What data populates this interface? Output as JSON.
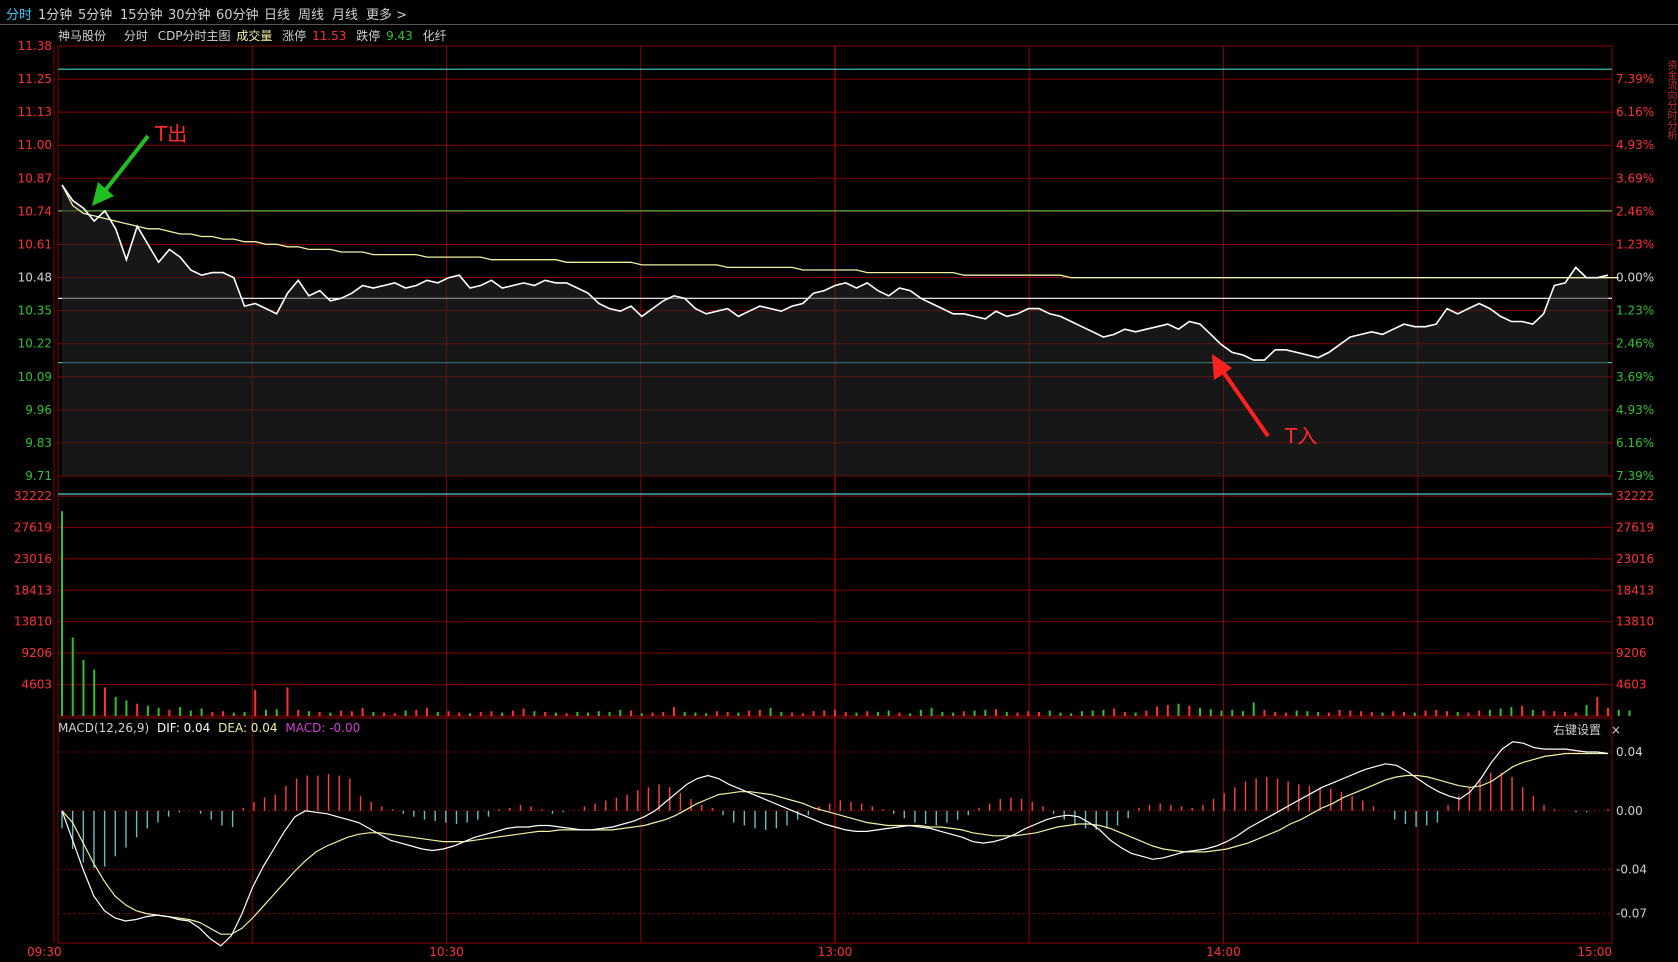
{
  "tabs": [
    {
      "label": "分时",
      "active": true
    },
    {
      "label": "1分钟"
    },
    {
      "label": "5分钟"
    },
    {
      "label": "15分钟"
    },
    {
      "label": "30分钟"
    },
    {
      "label": "60分钟"
    },
    {
      "label": "日线"
    },
    {
      "label": "周线"
    },
    {
      "label": "月线"
    },
    {
      "label": "更多 >"
    }
  ],
  "header": {
    "stock_name": "神马股份",
    "mode": "分时",
    "indicator": "CDP分时主图",
    "volume_label": "成交量",
    "limit_up_label": "涨停",
    "limit_up_value": "11.53",
    "limit_down_label": "跌停",
    "limit_down_value": "9.43",
    "sector": "化纤"
  },
  "macd_header": {
    "name": "MACD(12,26,9)",
    "dif": "DIF: 0.04",
    "dea": "DEA: 0.04",
    "macd": "MACD: -0.00"
  },
  "right_key_label": "右键设置",
  "close_glyph": "×",
  "right_strip_text": "资金流向分时分析",
  "annotations": {
    "sell": "T出",
    "buy": "T入"
  },
  "colors": {
    "up": "#ff3030",
    "down": "#30c030",
    "grid": "#8a0000",
    "price": "#ffffff",
    "avg": "#f0f0a0",
    "cyan": "#40d0d0",
    "axis_text": "#ff3030"
  },
  "price_axis": {
    "left": [
      "11.38",
      "11.25",
      "11.13",
      "11.00",
      "10.87",
      "10.74",
      "10.61",
      "10.48",
      "10.35",
      "10.22",
      "10.09",
      "9.96",
      "9.83",
      "9.71"
    ],
    "right": [
      "",
      "7.39%",
      "6.16%",
      "4.93%",
      "3.69%",
      "2.46%",
      "1.23%",
      "0.00%",
      "1.23%",
      "2.46%",
      "3.69%",
      "4.93%",
      "6.16%",
      "7.39%"
    ]
  },
  "volume_axis": [
    "32222",
    "27619",
    "23016",
    "18413",
    "13810",
    "9206",
    "4603"
  ],
  "macd_axis": [
    "0.04",
    "0.00",
    "-0.04",
    "-0.07"
  ],
  "time_axis": [
    "09:30",
    "10:30",
    "13:00",
    "14:00",
    "15:00"
  ],
  "chart_data": {
    "type": "line",
    "prev_close": 10.48,
    "ylim": [
      9.71,
      11.38
    ],
    "cdp_levels": [
      11.29,
      10.74,
      10.4,
      10.15,
      9.6
    ],
    "price": [
      10.84,
      10.78,
      10.75,
      10.7,
      10.74,
      10.67,
      10.55,
      10.68,
      10.61,
      10.54,
      10.59,
      10.56,
      10.51,
      10.49,
      10.5,
      10.5,
      10.48,
      10.37,
      10.38,
      10.36,
      10.34,
      10.42,
      10.47,
      10.41,
      10.43,
      10.39,
      10.4,
      10.42,
      10.45,
      10.44,
      10.45,
      10.46,
      10.44,
      10.45,
      10.47,
      10.46,
      10.48,
      10.49,
      10.44,
      10.45,
      10.47,
      10.44,
      10.45,
      10.46,
      10.45,
      10.47,
      10.46,
      10.46,
      10.44,
      10.42,
      10.38,
      10.36,
      10.35,
      10.37,
      10.33,
      10.36,
      10.39,
      10.41,
      10.4,
      10.36,
      10.34,
      10.35,
      10.36,
      10.33,
      10.35,
      10.37,
      10.36,
      10.35,
      10.37,
      10.38,
      10.42,
      10.43,
      10.45,
      10.46,
      10.44,
      10.46,
      10.43,
      10.41,
      10.44,
      10.43,
      10.4,
      10.38,
      10.36,
      10.34,
      10.34,
      10.33,
      10.32,
      10.35,
      10.33,
      10.34,
      10.36,
      10.36,
      10.34,
      10.33,
      10.31,
      10.29,
      10.27,
      10.25,
      10.26,
      10.28,
      10.27,
      10.28,
      10.29,
      10.3,
      10.28,
      10.31,
      10.3,
      10.26,
      10.22,
      10.19,
      10.18,
      10.16,
      10.16,
      10.2,
      10.2,
      10.19,
      10.18,
      10.17,
      10.19,
      10.22,
      10.25,
      10.26,
      10.27,
      10.26,
      10.28,
      10.3,
      10.29,
      10.29,
      10.3,
      10.36,
      10.34,
      10.36,
      10.38,
      10.36,
      10.33,
      10.31,
      10.31,
      10.3,
      10.34,
      10.45,
      10.46,
      10.52,
      10.48,
      10.48,
      10.49
    ],
    "avg": [
      10.84,
      10.76,
      10.73,
      10.72,
      10.71,
      10.7,
      10.69,
      10.68,
      10.67,
      10.67,
      10.66,
      10.65,
      10.65,
      10.64,
      10.64,
      10.63,
      10.63,
      10.62,
      10.62,
      10.61,
      10.61,
      10.6,
      10.6,
      10.59,
      10.59,
      10.59,
      10.58,
      10.58,
      10.58,
      10.57,
      10.57,
      10.57,
      10.57,
      10.57,
      10.56,
      10.56,
      10.56,
      10.56,
      10.56,
      10.56,
      10.55,
      10.55,
      10.55,
      10.55,
      10.55,
      10.55,
      10.55,
      10.54,
      10.54,
      10.54,
      10.54,
      10.54,
      10.54,
      10.54,
      10.53,
      10.53,
      10.53,
      10.53,
      10.53,
      10.53,
      10.53,
      10.53,
      10.52,
      10.52,
      10.52,
      10.52,
      10.52,
      10.52,
      10.52,
      10.51,
      10.51,
      10.51,
      10.51,
      10.51,
      10.51,
      10.5,
      10.5,
      10.5,
      10.5,
      10.5,
      10.5,
      10.5,
      10.5,
      10.5,
      10.49,
      10.49,
      10.49,
      10.49,
      10.49,
      10.49,
      10.49,
      10.49,
      10.49,
      10.49,
      10.48,
      10.48,
      10.48,
      10.48,
      10.48,
      10.48,
      10.48,
      10.48,
      10.48,
      10.48,
      10.48,
      10.48,
      10.48,
      10.48,
      10.48,
      10.48,
      10.48,
      10.48,
      10.48,
      10.48,
      10.48,
      10.48,
      10.48,
      10.48,
      10.48,
      10.48,
      10.48,
      10.48,
      10.48,
      10.48,
      10.48,
      10.48,
      10.48,
      10.48,
      10.48,
      10.48,
      10.48,
      10.48,
      10.48,
      10.48,
      10.48,
      10.48,
      10.48,
      10.48,
      10.48,
      10.48,
      10.48,
      10.48,
      10.48,
      10.48,
      10.48,
      10.48
    ],
    "volume": [
      30000,
      11500,
      8200,
      6800,
      4200,
      2800,
      2300,
      1800,
      1500,
      1200,
      900,
      1300,
      800,
      1100,
      600,
      700,
      500,
      600,
      3800,
      900,
      1000,
      4200,
      900,
      700,
      600,
      500,
      800,
      700,
      1200,
      600,
      500,
      400,
      800,
      900,
      1200,
      600,
      700,
      500,
      400,
      600,
      700,
      500,
      800,
      1100,
      700,
      600,
      500,
      400,
      600,
      500,
      700,
      600,
      900,
      800,
      400,
      500,
      600,
      1300,
      600,
      500,
      400,
      700,
      600,
      500,
      800,
      900,
      1200,
      600,
      500,
      400,
      700,
      800,
      900,
      600,
      500,
      700,
      600,
      800,
      500,
      400,
      900,
      1200,
      600,
      500,
      700,
      800,
      900,
      1000,
      600,
      500,
      700,
      600,
      800,
      500,
      400,
      700,
      800,
      900,
      1100,
      600,
      500,
      800,
      1400,
      1600,
      1800,
      1500,
      1200,
      1000,
      800,
      900,
      700,
      2000,
      900,
      600,
      500,
      800,
      700,
      600,
      500,
      900,
      800,
      700,
      600,
      500,
      700,
      600,
      500,
      800,
      900,
      700,
      600,
      500,
      800,
      900,
      1100,
      1300,
      1500,
      900,
      800,
      700,
      600,
      500,
      1600,
      2800,
      1200,
      900,
      800
    ],
    "macd_hist": [
      -0.012,
      -0.026,
      -0.035,
      -0.039,
      -0.038,
      -0.031,
      -0.025,
      -0.018,
      -0.012,
      -0.008,
      -0.004,
      -0.001,
      0.0,
      -0.002,
      -0.006,
      -0.01,
      -0.011,
      0.002,
      0.006,
      0.009,
      0.011,
      0.017,
      0.022,
      0.024,
      0.024,
      0.025,
      0.024,
      0.022,
      0.01,
      0.006,
      0.003,
      0.001,
      -0.002,
      -0.004,
      -0.006,
      -0.007,
      -0.008,
      -0.009,
      -0.008,
      -0.006,
      -0.004,
      0.001,
      0.002,
      0.004,
      0.003,
      0.001,
      -0.002,
      -0.001,
      0.0,
      0.003,
      0.005,
      0.007,
      0.009,
      0.011,
      0.014,
      0.016,
      0.018,
      0.016,
      0.012,
      0.008,
      0.004,
      0.002,
      -0.003,
      -0.008,
      -0.01,
      -0.012,
      -0.013,
      -0.012,
      -0.01,
      -0.006,
      -0.003,
      0.003,
      0.005,
      0.007,
      0.006,
      0.005,
      0.003,
      0.001,
      -0.002,
      -0.005,
      -0.008,
      -0.009,
      -0.01,
      -0.008,
      -0.006,
      -0.003,
      0.002,
      0.005,
      0.008,
      0.009,
      0.008,
      0.006,
      0.003,
      -0.002,
      -0.006,
      -0.01,
      -0.012,
      -0.013,
      -0.012,
      -0.01,
      -0.005,
      0.002,
      0.004,
      0.005,
      0.004,
      0.003,
      0.002,
      0.004,
      0.008,
      0.012,
      0.016,
      0.02,
      0.022,
      0.023,
      0.022,
      0.02,
      0.018,
      0.017,
      0.016,
      0.015,
      0.013,
      0.01,
      0.007,
      0.003,
      0.0,
      -0.006,
      -0.009,
      -0.011,
      -0.01,
      -0.008,
      0.004,
      0.01,
      0.016,
      0.022,
      0.026,
      0.026,
      0.023,
      0.016,
      0.01,
      0.004,
      0.001,
      0.0,
      -0.001,
      -0.001,
      0.0,
      0.001
    ],
    "dif": [
      0.0,
      -0.02,
      -0.04,
      -0.058,
      -0.068,
      -0.073,
      -0.075,
      -0.074,
      -0.072,
      -0.071,
      -0.072,
      -0.074,
      -0.075,
      -0.08,
      -0.087,
      -0.092,
      -0.085,
      -0.07,
      -0.052,
      -0.038,
      -0.026,
      -0.014,
      -0.004,
      0.0,
      -0.001,
      -0.002,
      -0.004,
      -0.006,
      -0.008,
      -0.012,
      -0.016,
      -0.02,
      -0.022,
      -0.024,
      -0.026,
      -0.027,
      -0.026,
      -0.024,
      -0.021,
      -0.018,
      -0.016,
      -0.014,
      -0.012,
      -0.011,
      -0.011,
      -0.01,
      -0.01,
      -0.011,
      -0.012,
      -0.013,
      -0.013,
      -0.012,
      -0.011,
      -0.009,
      -0.007,
      -0.004,
      0.0,
      0.006,
      0.012,
      0.018,
      0.022,
      0.024,
      0.022,
      0.018,
      0.015,
      0.012,
      0.009,
      0.006,
      0.003,
      0.0,
      -0.003,
      -0.006,
      -0.009,
      -0.011,
      -0.013,
      -0.014,
      -0.014,
      -0.013,
      -0.012,
      -0.011,
      -0.01,
      -0.011,
      -0.012,
      -0.014,
      -0.016,
      -0.018,
      -0.021,
      -0.022,
      -0.021,
      -0.019,
      -0.016,
      -0.012,
      -0.009,
      -0.006,
      -0.004,
      -0.003,
      -0.004,
      -0.008,
      -0.013,
      -0.02,
      -0.025,
      -0.029,
      -0.031,
      -0.033,
      -0.032,
      -0.03,
      -0.028,
      -0.027,
      -0.026,
      -0.024,
      -0.021,
      -0.017,
      -0.012,
      -0.008,
      -0.004,
      0.0,
      0.004,
      0.008,
      0.012,
      0.016,
      0.019,
      0.022,
      0.025,
      0.028,
      0.03,
      0.032,
      0.031,
      0.027,
      0.022,
      0.017,
      0.013,
      0.01,
      0.008,
      0.013,
      0.022,
      0.033,
      0.042,
      0.047,
      0.046,
      0.043,
      0.042,
      0.042,
      0.042,
      0.041,
      0.04,
      0.04,
      0.039
    ],
    "dea": [
      0.0,
      -0.008,
      -0.022,
      -0.036,
      -0.048,
      -0.058,
      -0.064,
      -0.068,
      -0.07,
      -0.071,
      -0.072,
      -0.073,
      -0.074,
      -0.076,
      -0.08,
      -0.084,
      -0.084,
      -0.08,
      -0.073,
      -0.065,
      -0.057,
      -0.049,
      -0.041,
      -0.034,
      -0.028,
      -0.024,
      -0.021,
      -0.018,
      -0.016,
      -0.015,
      -0.015,
      -0.016,
      -0.017,
      -0.018,
      -0.019,
      -0.02,
      -0.021,
      -0.021,
      -0.021,
      -0.02,
      -0.019,
      -0.018,
      -0.017,
      -0.016,
      -0.015,
      -0.014,
      -0.014,
      -0.013,
      -0.013,
      -0.013,
      -0.013,
      -0.013,
      -0.013,
      -0.012,
      -0.011,
      -0.01,
      -0.008,
      -0.006,
      -0.003,
      0.001,
      0.005,
      0.008,
      0.011,
      0.012,
      0.013,
      0.013,
      0.012,
      0.011,
      0.009,
      0.007,
      0.005,
      0.002,
      0.0,
      -0.002,
      -0.004,
      -0.006,
      -0.008,
      -0.009,
      -0.01,
      -0.01,
      -0.01,
      -0.01,
      -0.011,
      -0.011,
      -0.012,
      -0.013,
      -0.015,
      -0.016,
      -0.017,
      -0.017,
      -0.017,
      -0.016,
      -0.015,
      -0.013,
      -0.011,
      -0.01,
      -0.009,
      -0.009,
      -0.01,
      -0.012,
      -0.015,
      -0.018,
      -0.021,
      -0.024,
      -0.026,
      -0.027,
      -0.028,
      -0.028,
      -0.028,
      -0.027,
      -0.026,
      -0.024,
      -0.022,
      -0.019,
      -0.016,
      -0.013,
      -0.009,
      -0.006,
      -0.002,
      0.002,
      0.005,
      0.009,
      0.012,
      0.015,
      0.018,
      0.021,
      0.023,
      0.024,
      0.024,
      0.023,
      0.021,
      0.019,
      0.017,
      0.016,
      0.017,
      0.02,
      0.025,
      0.03,
      0.033,
      0.035,
      0.037,
      0.038,
      0.039,
      0.039,
      0.039,
      0.039,
      0.039
    ]
  }
}
